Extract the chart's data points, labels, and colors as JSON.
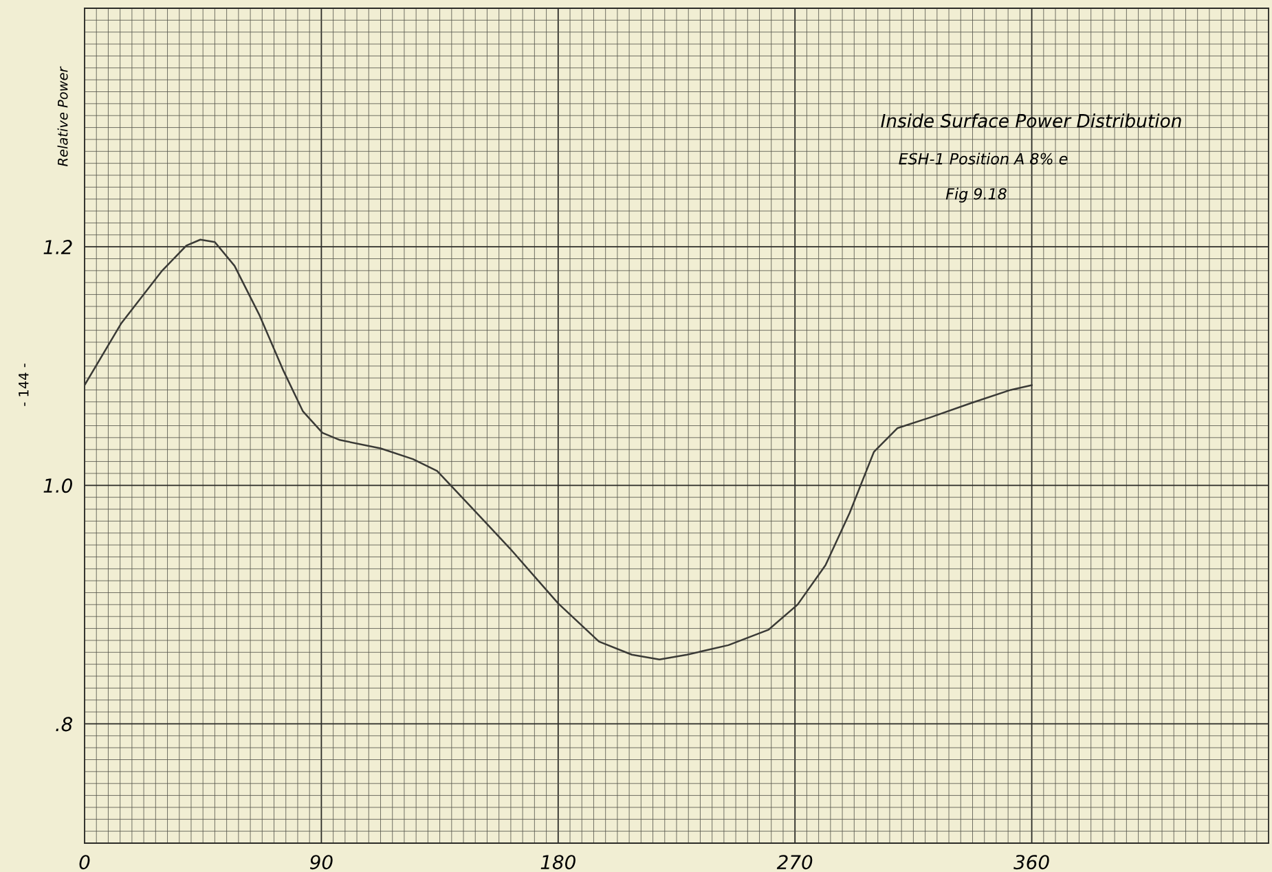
{
  "chart_data": {
    "type": "line",
    "title": "Inside Surface Power Distribution",
    "subtitle": "ESH-1 Position A 8% e",
    "annotations": [
      "Fig 9.18",
      "- 144 -"
    ],
    "ylabel": "Relative Power",
    "x": [
      0,
      14,
      29.5,
      38.7,
      44,
      49.5,
      57,
      66.4,
      75.6,
      83,
      90.4,
      97,
      112.5,
      124.8,
      134,
      146,
      161.7,
      180,
      195.5,
      208,
      218.5,
      229,
      244.7,
      260,
      271,
      281.6,
      290.8,
      300,
      309,
      321.5,
      337,
      352,
      360
    ],
    "series": [
      {
        "color": "#3a3a36",
        "values": [
          1.084,
          1.136,
          1.18,
          1.201,
          1.206,
          1.204,
          1.184,
          1.143,
          1.096,
          1.062,
          1.044,
          1.038,
          1.031,
          1.022,
          1.012,
          0.984,
          0.947,
          0.901,
          0.869,
          0.858,
          0.854,
          0.858,
          0.866,
          0.879,
          0.9,
          0.933,
          0.977,
          1.028,
          1.048,
          1.057,
          1.069,
          1.08,
          1.084
        ]
      }
    ],
    "xlim": [
      0,
      450
    ],
    "xticks": [
      0,
      90,
      180,
      270,
      360
    ],
    "ylim": [
      0.7,
      1.4
    ],
    "yticks": [
      {
        "value": 0.8,
        "label": ".8"
      },
      {
        "value": 1.0,
        "label": "1.0"
      },
      {
        "value": 1.2,
        "label": "1.2"
      }
    ],
    "grid": true,
    "marker": "none",
    "line_style": "solid"
  }
}
